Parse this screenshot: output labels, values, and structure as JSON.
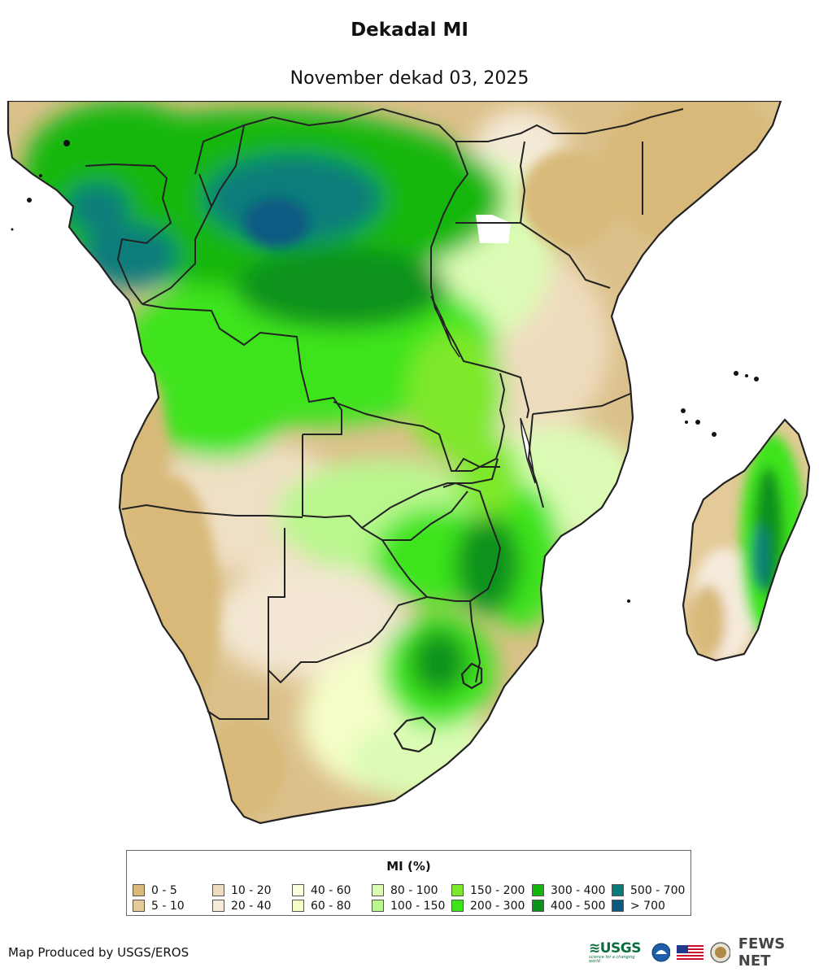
{
  "title": "Dekadal MI",
  "subtitle": "November dekad 03, 2025",
  "legend": {
    "title": "MI (%)",
    "items": [
      {
        "label": "0 - 5",
        "color": "#d8b979"
      },
      {
        "label": "5 - 10",
        "color": "#e3ca98"
      },
      {
        "label": "10 - 20",
        "color": "#eedcc0"
      },
      {
        "label": "20 - 40",
        "color": "#f6eadb"
      },
      {
        "label": "40 - 60",
        "color": "#fdfde0"
      },
      {
        "label": "60 - 80",
        "color": "#f5fdc8"
      },
      {
        "label": "80 - 100",
        "color": "#dcfcb5"
      },
      {
        "label": "100 - 150",
        "color": "#baf78e"
      },
      {
        "label": "150 - 200",
        "color": "#7ee82b"
      },
      {
        "label": "200 - 300",
        "color": "#3ee41a"
      },
      {
        "label": "300 - 400",
        "color": "#12b70e"
      },
      {
        "label": "400 - 500",
        "color": "#0b921c"
      },
      {
        "label": "500 - 700",
        "color": "#0a7b7b"
      },
      {
        "label": "> 700",
        "color": "#0a5a82"
      }
    ]
  },
  "credit": "Map Produced by USGS/EROS",
  "logos": {
    "usgs": "≋USGS",
    "usgs_tagline": "science for a changing world",
    "fews": "FEWS NET"
  }
}
